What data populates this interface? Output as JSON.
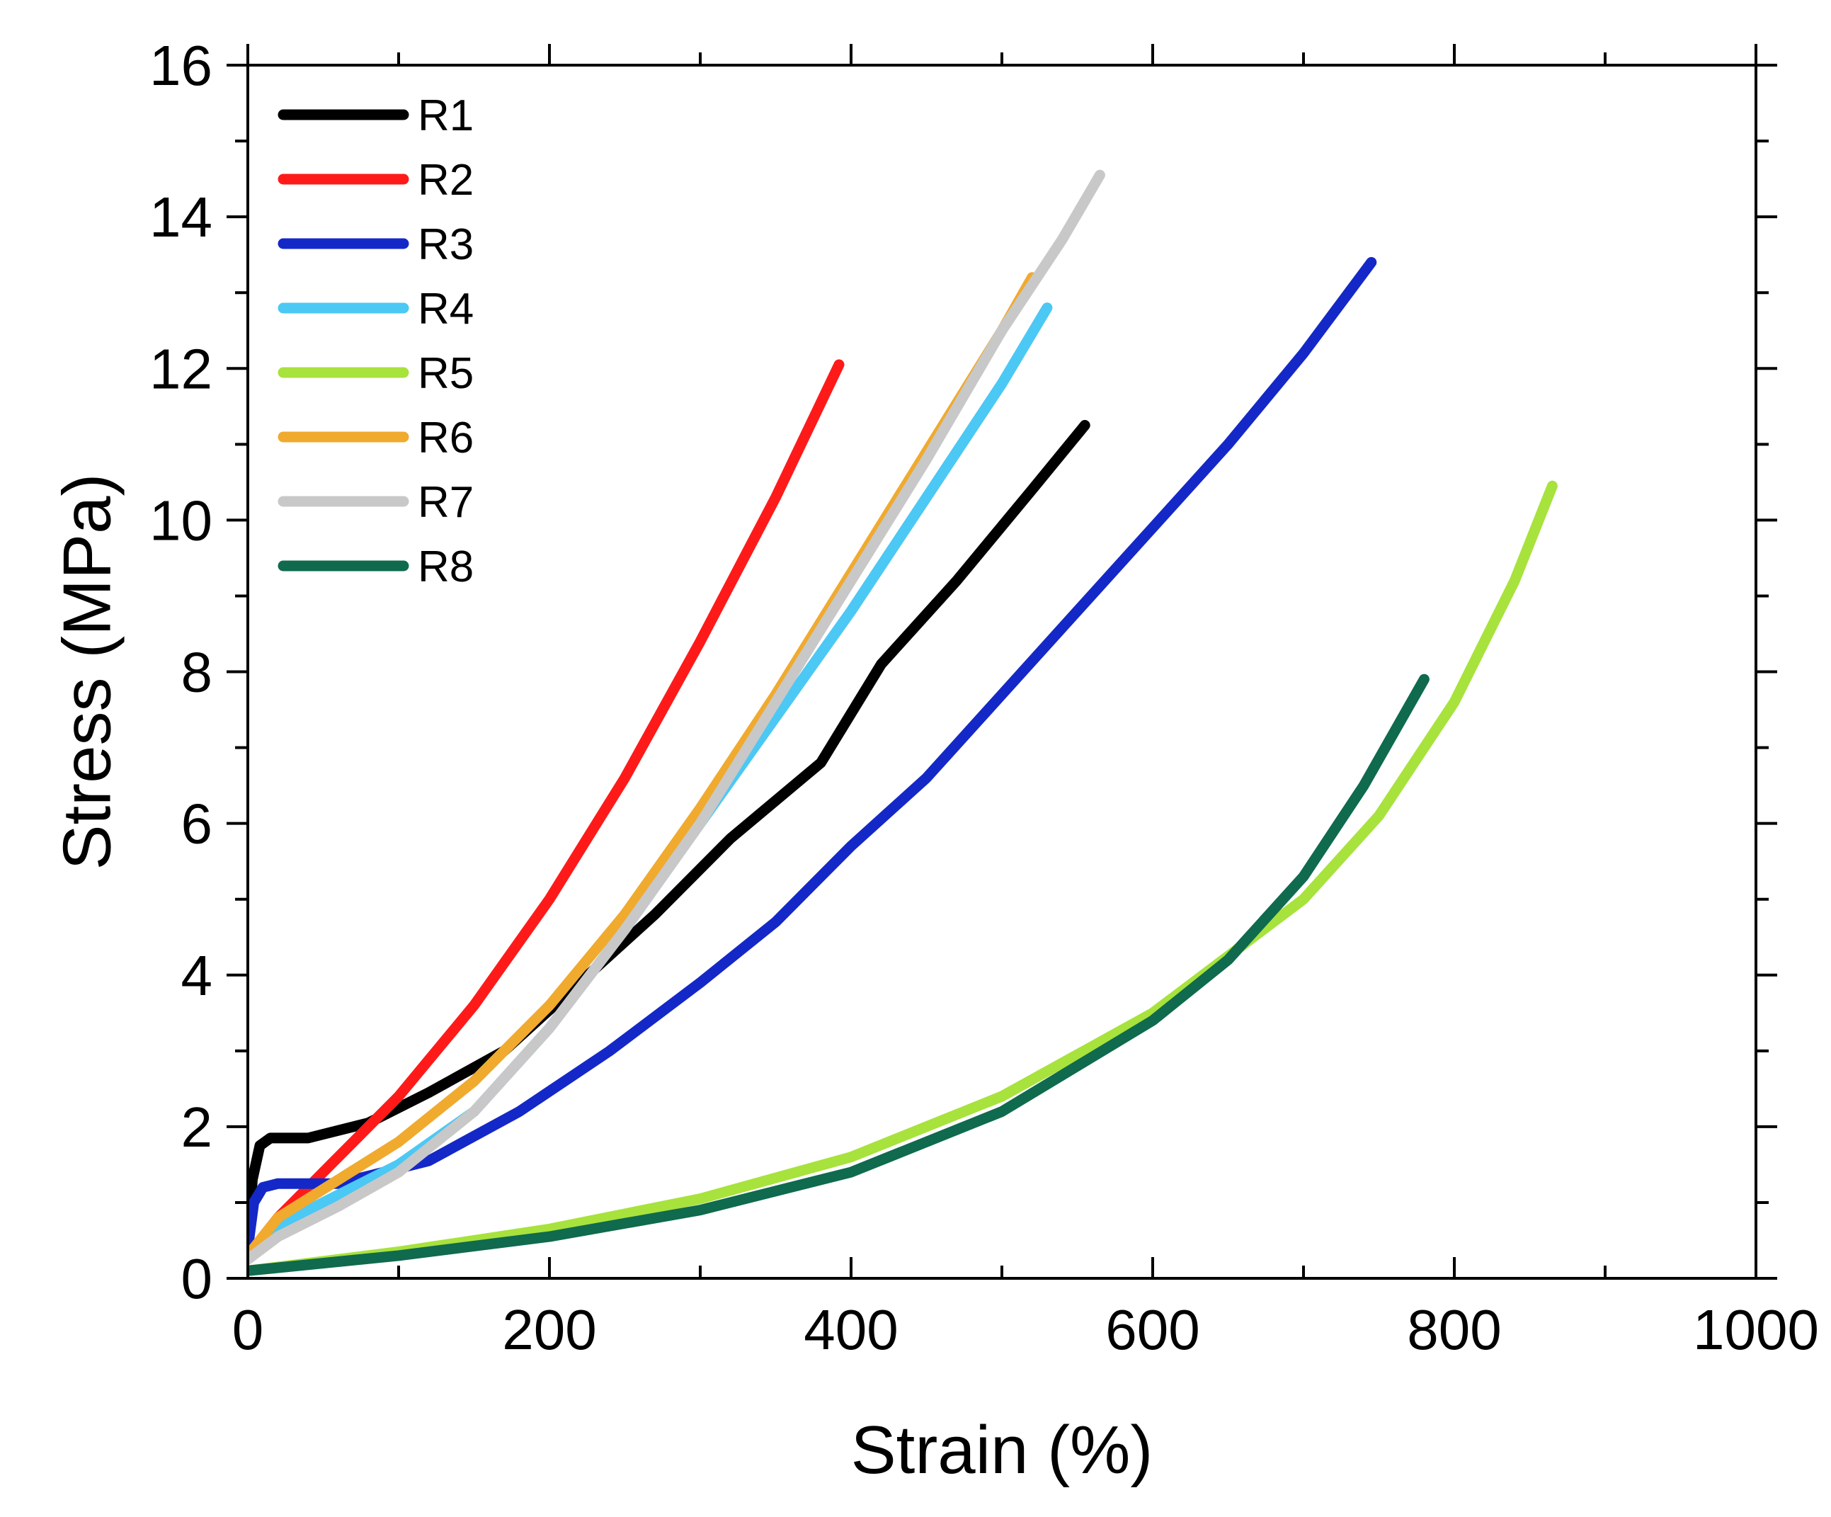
{
  "chart_data": {
    "type": "line",
    "title": "",
    "xlabel": "Strain (%)",
    "ylabel": "Stress (MPa)",
    "xlim": [
      0,
      1000
    ],
    "ylim": [
      0,
      16
    ],
    "x_ticks": [
      "0",
      "200",
      "400",
      "600",
      "800",
      "1000"
    ],
    "y_ticks": [
      "0",
      "2",
      "4",
      "6",
      "8",
      "10",
      "12",
      "14",
      "16"
    ],
    "grid": false,
    "legend_position": "top-left",
    "series": [
      {
        "name": "R1",
        "color": "#000000",
        "x": [
          0,
          3,
          8,
          15,
          40,
          80,
          120,
          170,
          220,
          270,
          320,
          380,
          420,
          470,
          520,
          555
        ],
        "y": [
          0.3,
          1.3,
          1.75,
          1.85,
          1.85,
          2.05,
          2.45,
          3.0,
          3.9,
          4.8,
          5.8,
          6.8,
          8.1,
          9.2,
          10.4,
          11.25
        ]
      },
      {
        "name": "R2",
        "color": "#ff1a1a",
        "x": [
          0,
          20,
          50,
          100,
          150,
          200,
          250,
          300,
          350,
          392
        ],
        "y": [
          0.3,
          0.8,
          1.4,
          2.4,
          3.6,
          5.0,
          6.6,
          8.4,
          10.3,
          12.05
        ]
      },
      {
        "name": "R3",
        "color": "#1428c8",
        "x": [
          0,
          4,
          10,
          20,
          60,
          120,
          180,
          240,
          300,
          350,
          400,
          450,
          500,
          550,
          600,
          650,
          700,
          745
        ],
        "y": [
          0.4,
          1.0,
          1.2,
          1.25,
          1.25,
          1.55,
          2.2,
          3.0,
          3.9,
          4.7,
          5.7,
          6.6,
          7.7,
          8.8,
          9.9,
          11.0,
          12.2,
          13.4
        ]
      },
      {
        "name": "R4",
        "color": "#4cc8f4",
        "x": [
          0,
          20,
          60,
          100,
          150,
          200,
          250,
          300,
          350,
          400,
          450,
          500,
          530
        ],
        "y": [
          0.3,
          0.7,
          1.1,
          1.5,
          2.2,
          3.3,
          4.6,
          6.0,
          7.4,
          8.8,
          10.3,
          11.8,
          12.8
        ]
      },
      {
        "name": "R5",
        "color": "#a8e23c",
        "x": [
          0,
          100,
          200,
          300,
          400,
          500,
          600,
          700,
          750,
          800,
          840,
          865
        ],
        "y": [
          0.1,
          0.35,
          0.65,
          1.05,
          1.6,
          2.4,
          3.5,
          5.0,
          6.1,
          7.6,
          9.2,
          10.45
        ]
      },
      {
        "name": "R6",
        "color": "#f0aa2e",
        "x": [
          0,
          20,
          60,
          100,
          150,
          200,
          250,
          300,
          350,
          400,
          450,
          500,
          520
        ],
        "y": [
          0.3,
          0.8,
          1.3,
          1.8,
          2.6,
          3.6,
          4.8,
          6.2,
          7.7,
          9.3,
          10.9,
          12.5,
          13.2
        ]
      },
      {
        "name": "R7",
        "color": "#c8c8c8",
        "x": [
          0,
          20,
          60,
          100,
          150,
          200,
          250,
          300,
          350,
          400,
          450,
          500,
          540,
          565
        ],
        "y": [
          0.25,
          0.55,
          0.95,
          1.4,
          2.2,
          3.3,
          4.6,
          6.0,
          7.6,
          9.2,
          10.8,
          12.5,
          13.7,
          14.55
        ]
      },
      {
        "name": "R8",
        "color": "#0f6a4e",
        "x": [
          0,
          100,
          200,
          300,
          400,
          500,
          600,
          650,
          700,
          740,
          780
        ],
        "y": [
          0.1,
          0.3,
          0.55,
          0.9,
          1.4,
          2.2,
          3.4,
          4.2,
          5.3,
          6.5,
          7.9
        ]
      }
    ]
  }
}
